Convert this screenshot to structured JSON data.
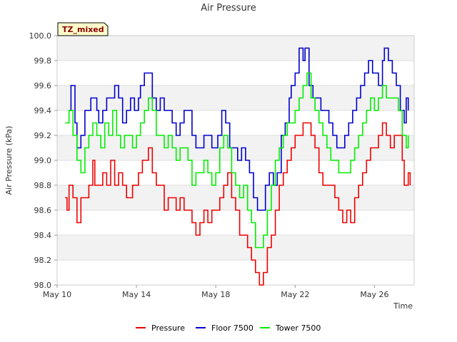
{
  "chart_data": {
    "type": "line",
    "title": "Air Pressure",
    "xlabel": "Time",
    "ylabel": "Air Pressure (kPa)",
    "tag": "TZ_mixed",
    "xlim": [
      10,
      28
    ],
    "ylim": [
      98.0,
      100.0
    ],
    "yticks": [
      "98.0",
      "98.2",
      "98.4",
      "98.6",
      "98.8",
      "99.0",
      "99.2",
      "99.4",
      "99.6",
      "99.8",
      "100.0"
    ],
    "xticks": [
      {
        "day": 10,
        "label": "May 10"
      },
      {
        "day": 14,
        "label": "May 14"
      },
      {
        "day": 18,
        "label": "May 18"
      },
      {
        "day": 22,
        "label": "May 22"
      },
      {
        "day": 26,
        "label": "May 26"
      }
    ],
    "series": [
      {
        "name": "Pressure",
        "color": "#ee0000",
        "points": [
          [
            10.4,
            98.7
          ],
          [
            10.5,
            98.6
          ],
          [
            10.6,
            98.8
          ],
          [
            10.8,
            98.7
          ],
          [
            11.0,
            98.5
          ],
          [
            11.2,
            98.7
          ],
          [
            11.4,
            98.7
          ],
          [
            11.6,
            98.8
          ],
          [
            11.8,
            99.0
          ],
          [
            11.9,
            98.8
          ],
          [
            12.1,
            98.8
          ],
          [
            12.3,
            98.9
          ],
          [
            12.5,
            98.8
          ],
          [
            12.7,
            99.0
          ],
          [
            12.9,
            98.8
          ],
          [
            13.1,
            98.9
          ],
          [
            13.3,
            98.8
          ],
          [
            13.5,
            98.7
          ],
          [
            13.8,
            98.8
          ],
          [
            14.1,
            98.9
          ],
          [
            14.3,
            99.0
          ],
          [
            14.5,
            99.0
          ],
          [
            14.6,
            99.1
          ],
          [
            14.8,
            98.9
          ],
          [
            15.0,
            98.8
          ],
          [
            15.2,
            98.8
          ],
          [
            15.4,
            98.6
          ],
          [
            15.6,
            98.7
          ],
          [
            15.8,
            98.7
          ],
          [
            16.0,
            98.6
          ],
          [
            16.2,
            98.7
          ],
          [
            16.4,
            98.6
          ],
          [
            16.6,
            98.6
          ],
          [
            16.8,
            98.5
          ],
          [
            17.0,
            98.4
          ],
          [
            17.2,
            98.5
          ],
          [
            17.4,
            98.6
          ],
          [
            17.6,
            98.5
          ],
          [
            17.8,
            98.6
          ],
          [
            18.0,
            98.6
          ],
          [
            18.2,
            98.7
          ],
          [
            18.4,
            98.8
          ],
          [
            18.6,
            98.9
          ],
          [
            18.8,
            98.7
          ],
          [
            19.0,
            98.6
          ],
          [
            19.2,
            98.4
          ],
          [
            19.4,
            98.4
          ],
          [
            19.6,
            98.3
          ],
          [
            19.8,
            98.2
          ],
          [
            20.0,
            98.1
          ],
          [
            20.2,
            98.0
          ],
          [
            20.3,
            98.0
          ],
          [
            20.4,
            98.1
          ],
          [
            20.6,
            98.3
          ],
          [
            20.8,
            98.4
          ],
          [
            21.0,
            98.6
          ],
          [
            21.2,
            98.8
          ],
          [
            21.4,
            98.9
          ],
          [
            21.6,
            99.0
          ],
          [
            21.8,
            99.1
          ],
          [
            22.0,
            99.2
          ],
          [
            22.2,
            99.2
          ],
          [
            22.4,
            99.3
          ],
          [
            22.6,
            99.3
          ],
          [
            22.8,
            99.2
          ],
          [
            23.0,
            99.1
          ],
          [
            23.2,
            98.9
          ],
          [
            23.4,
            98.8
          ],
          [
            23.6,
            98.8
          ],
          [
            23.8,
            98.8
          ],
          [
            24.0,
            98.7
          ],
          [
            24.2,
            98.6
          ],
          [
            24.4,
            98.5
          ],
          [
            24.6,
            98.6
          ],
          [
            24.8,
            98.5
          ],
          [
            25.0,
            98.7
          ],
          [
            25.2,
            98.8
          ],
          [
            25.4,
            98.9
          ],
          [
            25.6,
            99.0
          ],
          [
            25.8,
            99.1
          ],
          [
            26.0,
            99.1
          ],
          [
            26.2,
            99.2
          ],
          [
            26.4,
            99.3
          ],
          [
            26.6,
            99.2
          ],
          [
            26.8,
            99.1
          ],
          [
            27.0,
            99.2
          ],
          [
            27.2,
            99.2
          ],
          [
            27.4,
            99.0
          ],
          [
            27.5,
            98.8
          ],
          [
            27.7,
            98.9
          ],
          [
            27.8,
            98.8
          ]
        ]
      },
      {
        "name": "Floor 7500",
        "color": "#0000cc",
        "points": [
          [
            10.6,
            99.4
          ],
          [
            10.7,
            99.6
          ],
          [
            10.9,
            99.3
          ],
          [
            11.0,
            99.1
          ],
          [
            11.2,
            99.2
          ],
          [
            11.4,
            99.4
          ],
          [
            11.6,
            99.4
          ],
          [
            11.7,
            99.5
          ],
          [
            12.0,
            99.4
          ],
          [
            12.1,
            99.3
          ],
          [
            12.3,
            99.4
          ],
          [
            12.5,
            99.5
          ],
          [
            12.7,
            99.5
          ],
          [
            12.9,
            99.6
          ],
          [
            13.1,
            99.5
          ],
          [
            13.3,
            99.3
          ],
          [
            13.5,
            99.4
          ],
          [
            13.7,
            99.5
          ],
          [
            13.9,
            99.4
          ],
          [
            14.1,
            99.5
          ],
          [
            14.2,
            99.6
          ],
          [
            14.4,
            99.7
          ],
          [
            14.6,
            99.7
          ],
          [
            14.8,
            99.5
          ],
          [
            15.0,
            99.4
          ],
          [
            15.2,
            99.5
          ],
          [
            15.4,
            99.4
          ],
          [
            15.6,
            99.4
          ],
          [
            15.8,
            99.3
          ],
          [
            16.0,
            99.2
          ],
          [
            16.2,
            99.3
          ],
          [
            16.4,
            99.4
          ],
          [
            16.6,
            99.4
          ],
          [
            16.8,
            99.2
          ],
          [
            17.0,
            99.1
          ],
          [
            17.2,
            99.1
          ],
          [
            17.4,
            99.2
          ],
          [
            17.6,
            99.2
          ],
          [
            17.8,
            99.1
          ],
          [
            18.0,
            99.1
          ],
          [
            18.1,
            99.2
          ],
          [
            18.3,
            99.4
          ],
          [
            18.5,
            99.3
          ],
          [
            18.7,
            99.1
          ],
          [
            18.9,
            99.1
          ],
          [
            19.1,
            99.0
          ],
          [
            19.3,
            99.1
          ],
          [
            19.5,
            99.0
          ],
          [
            19.7,
            98.9
          ],
          [
            19.9,
            98.7
          ],
          [
            20.1,
            98.6
          ],
          [
            20.3,
            98.6
          ],
          [
            20.5,
            98.8
          ],
          [
            20.7,
            98.9
          ],
          [
            20.9,
            98.8
          ],
          [
            21.1,
            98.9
          ],
          [
            21.3,
            99.2
          ],
          [
            21.5,
            99.3
          ],
          [
            21.7,
            99.5
          ],
          [
            21.8,
            99.6
          ],
          [
            22.0,
            99.7
          ],
          [
            22.2,
            99.9
          ],
          [
            22.4,
            99.8
          ],
          [
            22.5,
            99.9
          ],
          [
            22.7,
            99.6
          ],
          [
            22.9,
            99.5
          ],
          [
            23.1,
            99.5
          ],
          [
            23.3,
            99.4
          ],
          [
            23.5,
            99.4
          ],
          [
            23.7,
            99.3
          ],
          [
            23.9,
            99.2
          ],
          [
            24.1,
            99.1
          ],
          [
            24.3,
            99.1
          ],
          [
            24.5,
            99.2
          ],
          [
            24.7,
            99.3
          ],
          [
            24.9,
            99.4
          ],
          [
            25.1,
            99.5
          ],
          [
            25.3,
            99.6
          ],
          [
            25.5,
            99.7
          ],
          [
            25.7,
            99.8
          ],
          [
            25.9,
            99.7
          ],
          [
            26.1,
            99.7
          ],
          [
            26.2,
            99.6
          ],
          [
            26.4,
            99.8
          ],
          [
            26.5,
            99.9
          ],
          [
            26.7,
            99.8
          ],
          [
            26.9,
            99.7
          ],
          [
            27.1,
            99.6
          ],
          [
            27.3,
            99.4
          ],
          [
            27.5,
            99.3
          ],
          [
            27.6,
            99.5
          ],
          [
            27.7,
            99.4
          ]
        ]
      },
      {
        "name": "Tower 7500",
        "color": "#00ee00",
        "points": [
          [
            10.4,
            99.3
          ],
          [
            10.6,
            99.4
          ],
          [
            10.8,
            99.2
          ],
          [
            11.0,
            99.0
          ],
          [
            11.2,
            98.9
          ],
          [
            11.4,
            99.1
          ],
          [
            11.6,
            99.2
          ],
          [
            11.8,
            99.3
          ],
          [
            12.0,
            99.2
          ],
          [
            12.2,
            99.1
          ],
          [
            12.4,
            99.3
          ],
          [
            12.6,
            99.2
          ],
          [
            12.8,
            99.4
          ],
          [
            13.0,
            99.2
          ],
          [
            13.2,
            99.1
          ],
          [
            13.4,
            99.2
          ],
          [
            13.6,
            99.2
          ],
          [
            13.8,
            99.1
          ],
          [
            14.0,
            99.2
          ],
          [
            14.2,
            99.3
          ],
          [
            14.4,
            99.4
          ],
          [
            14.6,
            99.5
          ],
          [
            14.8,
            99.4
          ],
          [
            15.0,
            99.2
          ],
          [
            15.2,
            99.2
          ],
          [
            15.4,
            99.1
          ],
          [
            15.6,
            99.2
          ],
          [
            15.8,
            99.1
          ],
          [
            16.0,
            99.0
          ],
          [
            16.2,
            99.1
          ],
          [
            16.4,
            99.1
          ],
          [
            16.6,
            99.0
          ],
          [
            16.8,
            98.8
          ],
          [
            17.0,
            98.9
          ],
          [
            17.2,
            98.9
          ],
          [
            17.4,
            99.0
          ],
          [
            17.6,
            98.9
          ],
          [
            17.8,
            98.8
          ],
          [
            18.0,
            98.9
          ],
          [
            18.2,
            99.1
          ],
          [
            18.4,
            99.2
          ],
          [
            18.6,
            99.1
          ],
          [
            18.8,
            98.9
          ],
          [
            19.0,
            98.8
          ],
          [
            19.2,
            98.7
          ],
          [
            19.4,
            98.8
          ],
          [
            19.6,
            98.6
          ],
          [
            19.8,
            98.5
          ],
          [
            20.0,
            98.3
          ],
          [
            20.2,
            98.3
          ],
          [
            20.4,
            98.4
          ],
          [
            20.6,
            98.6
          ],
          [
            20.8,
            98.8
          ],
          [
            21.0,
            99.0
          ],
          [
            21.2,
            99.1
          ],
          [
            21.4,
            99.2
          ],
          [
            21.6,
            99.3
          ],
          [
            21.8,
            99.3
          ],
          [
            22.0,
            99.4
          ],
          [
            22.2,
            99.5
          ],
          [
            22.4,
            99.6
          ],
          [
            22.6,
            99.7
          ],
          [
            22.8,
            99.5
          ],
          [
            23.0,
            99.4
          ],
          [
            23.2,
            99.3
          ],
          [
            23.4,
            99.2
          ],
          [
            23.6,
            99.1
          ],
          [
            23.8,
            99.0
          ],
          [
            24.0,
            99.0
          ],
          [
            24.2,
            98.9
          ],
          [
            24.4,
            98.9
          ],
          [
            24.6,
            98.9
          ],
          [
            24.8,
            99.0
          ],
          [
            25.0,
            99.1
          ],
          [
            25.2,
            99.2
          ],
          [
            25.4,
            99.3
          ],
          [
            25.6,
            99.4
          ],
          [
            25.8,
            99.5
          ],
          [
            26.0,
            99.4
          ],
          [
            26.2,
            99.5
          ],
          [
            26.4,
            99.6
          ],
          [
            26.6,
            99.5
          ],
          [
            26.8,
            99.5
          ],
          [
            27.0,
            99.5
          ],
          [
            27.2,
            99.4
          ],
          [
            27.4,
            99.2
          ],
          [
            27.6,
            99.1
          ],
          [
            27.7,
            99.2
          ]
        ]
      }
    ],
    "legend_position": "bottom-center"
  }
}
